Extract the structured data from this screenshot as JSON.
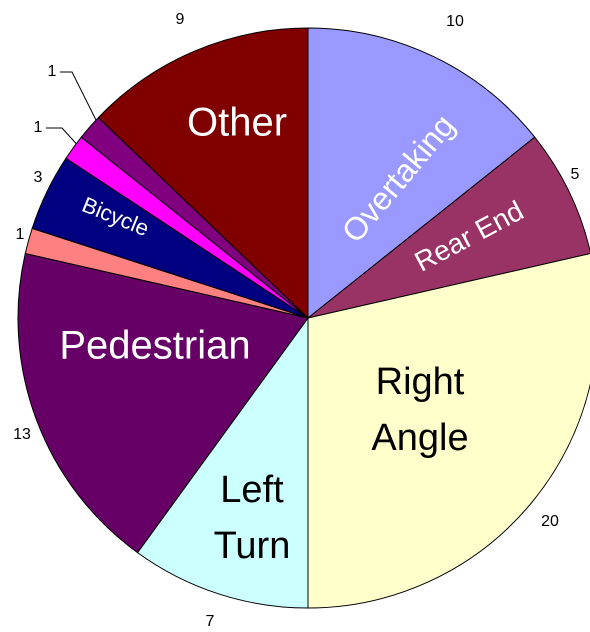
{
  "chart_data": {
    "type": "pie",
    "categories": [
      "Overtaking",
      "Rear End",
      "Right Angle",
      "Left Turn",
      "Pedestrian",
      null,
      "Bicycle",
      null,
      null,
      "Other"
    ],
    "values": [
      10,
      5,
      20,
      7,
      13,
      1,
      3,
      1,
      1,
      9
    ],
    "colors": [
      "#9999ff",
      "#993366",
      "#ffffcc",
      "#ccffff",
      "#660066",
      "#ff8080",
      "#000080",
      "#ff00ff",
      "#800080",
      "#800000"
    ]
  }
}
